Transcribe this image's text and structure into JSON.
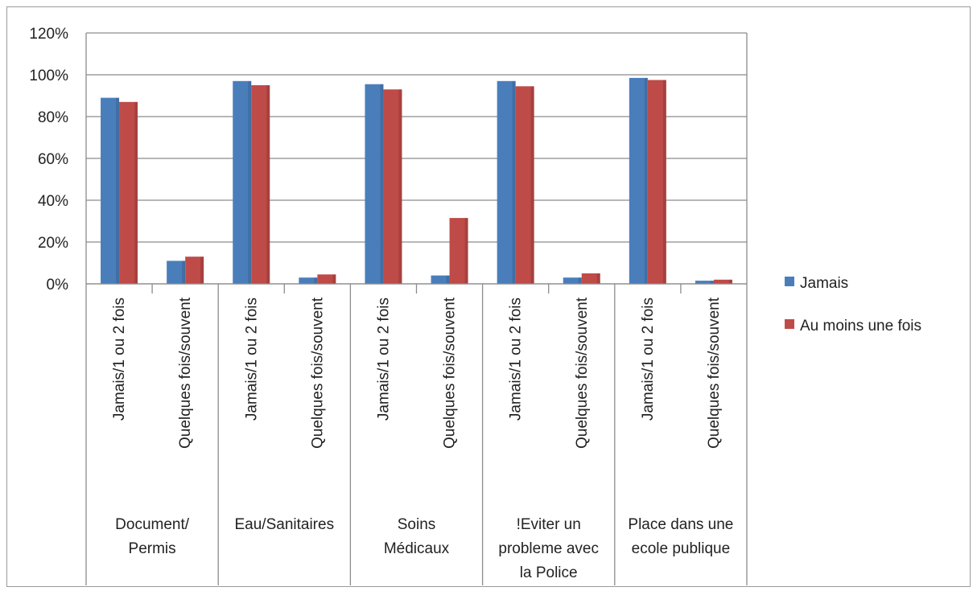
{
  "chart_data": {
    "type": "bar",
    "title": "",
    "xlabel": "",
    "ylabel": "",
    "ylim": [
      0,
      1.2
    ],
    "yticks": [
      "0%",
      "20%",
      "40%",
      "60%",
      "80%",
      "100%",
      "120%"
    ],
    "grid": true,
    "legend_position": "right",
    "groups": [
      {
        "label": "Document/ Permis",
        "lines": [
          "Document/",
          "Permis"
        ]
      },
      {
        "label": "Eau/Sanitaires",
        "lines": [
          "Eau/Sanitaires"
        ]
      },
      {
        "label": "Soins Médicaux",
        "lines": [
          "Soins",
          "Médicaux"
        ]
      },
      {
        "label": "!Eviter un probleme avec la Police",
        "lines": [
          "!Eviter un",
          "probleme avec",
          "la Police"
        ]
      },
      {
        "label": "Place dans une ecole publique",
        "lines": [
          "Place dans une",
          "ecole publique"
        ]
      }
    ],
    "categories": [
      "Jamais/1 ou 2 fois",
      "Quelques fois/souvent",
      "Jamais/1 ou 2 fois",
      "Quelques fois/souvent",
      "Jamais/1 ou 2 fois",
      "Quelques fois/souvent",
      "Jamais/1 ou 2 fois",
      "Quelques fois/souvent",
      "Jamais/1 ou 2 fois",
      "Quelques fois/souvent"
    ],
    "series": [
      {
        "name": "Jamais",
        "color": "#4a7ebb",
        "values": [
          0.89,
          0.11,
          0.97,
          0.03,
          0.955,
          0.04,
          0.97,
          0.03,
          0.985,
          0.015
        ]
      },
      {
        "name": "Au moins une fois",
        "color": "#be4b48",
        "values": [
          0.87,
          0.13,
          0.95,
          0.045,
          0.93,
          0.315,
          0.945,
          0.05,
          0.975,
          0.02
        ]
      }
    ]
  }
}
